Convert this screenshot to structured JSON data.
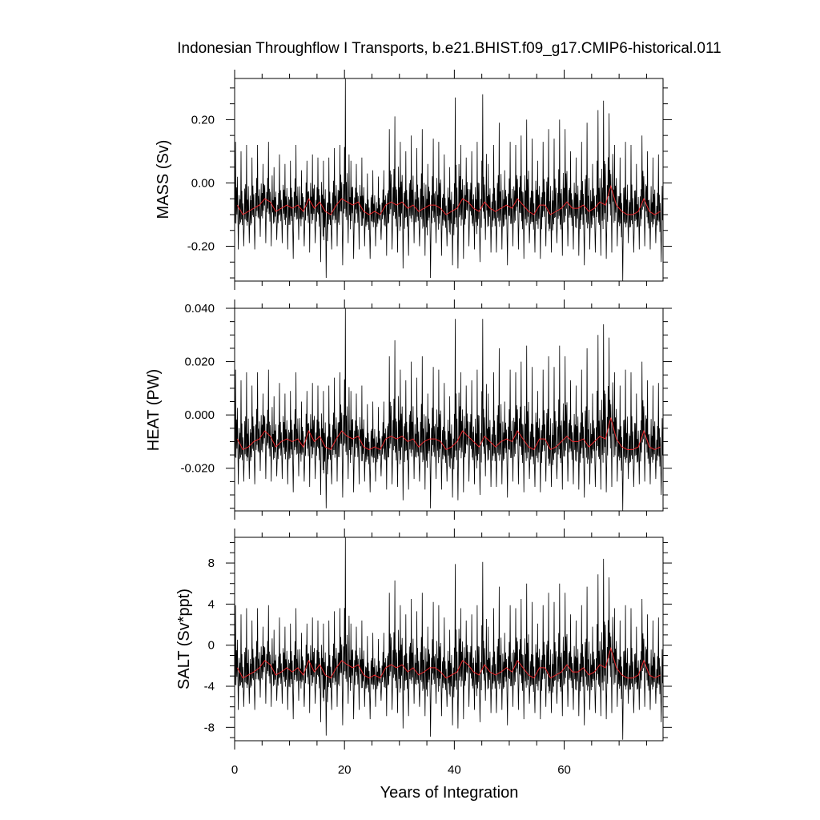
{
  "chart_data": {
    "type": "line",
    "title": "Indonesian Throughflow I Transports, b.e21.BHIST.f09_g17.CMIP6-historical.011",
    "xlabel": "Years of Integration",
    "xlim": [
      0,
      78
    ],
    "x_ticks": [
      0,
      20,
      40,
      60
    ],
    "grid": false,
    "legend": "none",
    "colors": {
      "monthly": "#000000",
      "annual": "#e8262a"
    },
    "panels": [
      {
        "ylabel": "MASS (Sv)",
        "ylim": [
          -0.31,
          0.33
        ],
        "y_ticks": [
          0.2,
          0.0,
          -0.2
        ],
        "y_tick_labels": [
          "0.20",
          "0.00",
          "-0.20"
        ],
        "annual_mean": [
          -0.07,
          -0.1,
          -0.09,
          -0.08,
          -0.07,
          -0.05,
          -0.06,
          -0.09,
          -0.08,
          -0.07,
          -0.08,
          -0.07,
          -0.09,
          -0.05,
          -0.08,
          -0.06,
          -0.09,
          -0.1,
          -0.07,
          -0.05,
          -0.06,
          -0.07,
          -0.06,
          -0.09,
          -0.1,
          -0.09,
          -0.1,
          -0.07,
          -0.06,
          -0.07,
          -0.06,
          -0.08,
          -0.07,
          -0.09,
          -0.08,
          -0.07,
          -0.07,
          -0.08,
          -0.1,
          -0.09,
          -0.08,
          -0.05,
          -0.06,
          -0.08,
          -0.09,
          -0.06,
          -0.08,
          -0.09,
          -0.08,
          -0.07,
          -0.08,
          -0.05,
          -0.07,
          -0.09,
          -0.1,
          -0.07,
          -0.07,
          -0.1,
          -0.09,
          -0.08,
          -0.06,
          -0.08,
          -0.08,
          -0.07,
          -0.09,
          -0.08,
          -0.06,
          -0.07,
          -0.01,
          -0.07,
          -0.09,
          -0.1,
          -0.1,
          -0.09,
          -0.05,
          -0.09,
          -0.1,
          -0.09
        ],
        "envelope_max": [
          0.13,
          0.1,
          0.12,
          0.08,
          0.12,
          0.06,
          0.13,
          0.05,
          0.09,
          0.06,
          0.07,
          0.12,
          0.04,
          0.07,
          0.09,
          0.08,
          0.07,
          0.08,
          0.11,
          0.12,
          0.33,
          0.07,
          0.06,
          0.08,
          0.03,
          0.04,
          0.02,
          0.04,
          0.17,
          0.21,
          0.13,
          0.1,
          0.15,
          0.11,
          0.17,
          0.06,
          0.14,
          0.13,
          0.09,
          0.05,
          0.27,
          0.12,
          0.08,
          0.1,
          0.13,
          0.28,
          0.06,
          0.12,
          0.19,
          0.04,
          0.13,
          0.12,
          0.15,
          0.2,
          0.14,
          0.07,
          0.13,
          0.17,
          0.14,
          0.2,
          0.17,
          0.1,
          0.08,
          0.13,
          0.19,
          0.06,
          0.23,
          0.26,
          0.22,
          0.12,
          0.08,
          0.13,
          0.12,
          0.06,
          0.15,
          0.1,
          0.08,
          0.09
        ],
        "envelope_min": [
          -0.21,
          -0.2,
          -0.19,
          -0.21,
          -0.17,
          -0.19,
          -0.2,
          -0.18,
          -0.19,
          -0.21,
          -0.24,
          -0.18,
          -0.2,
          -0.22,
          -0.19,
          -0.25,
          -0.3,
          -0.21,
          -0.2,
          -0.26,
          -0.19,
          -0.24,
          -0.21,
          -0.2,
          -0.24,
          -0.2,
          -0.18,
          -0.23,
          -0.21,
          -0.22,
          -0.27,
          -0.23,
          -0.19,
          -0.2,
          -0.23,
          -0.3,
          -0.19,
          -0.23,
          -0.2,
          -0.26,
          -0.27,
          -0.24,
          -0.2,
          -0.21,
          -0.25,
          -0.18,
          -0.22,
          -0.22,
          -0.21,
          -0.26,
          -0.2,
          -0.21,
          -0.24,
          -0.19,
          -0.22,
          -0.24,
          -0.2,
          -0.22,
          -0.19,
          -0.23,
          -0.2,
          -0.21,
          -0.23,
          -0.26,
          -0.21,
          -0.22,
          -0.23,
          -0.24,
          -0.22,
          -0.2,
          -0.31,
          -0.19,
          -0.22,
          -0.21,
          -0.2,
          -0.21,
          -0.19,
          -0.25
        ]
      },
      {
        "ylabel": "HEAT (PW)",
        "ylim": [
          -0.036,
          0.04
        ],
        "y_ticks": [
          0.04,
          0.02,
          0.0,
          -0.02
        ],
        "y_tick_labels": [
          "0.040",
          "0.020",
          "0.000",
          "-0.020"
        ],
        "annual_mean": [
          -0.009,
          -0.013,
          -0.012,
          -0.01,
          -0.009,
          -0.006,
          -0.008,
          -0.012,
          -0.01,
          -0.009,
          -0.01,
          -0.009,
          -0.012,
          -0.006,
          -0.01,
          -0.008,
          -0.012,
          -0.013,
          -0.009,
          -0.006,
          -0.008,
          -0.009,
          -0.008,
          -0.012,
          -0.013,
          -0.012,
          -0.013,
          -0.009,
          -0.008,
          -0.009,
          -0.008,
          -0.01,
          -0.009,
          -0.012,
          -0.01,
          -0.009,
          -0.009,
          -0.01,
          -0.013,
          -0.012,
          -0.01,
          -0.006,
          -0.008,
          -0.01,
          -0.012,
          -0.008,
          -0.01,
          -0.012,
          -0.01,
          -0.009,
          -0.01,
          -0.006,
          -0.009,
          -0.012,
          -0.013,
          -0.009,
          -0.009,
          -0.013,
          -0.012,
          -0.01,
          -0.008,
          -0.01,
          -0.01,
          -0.009,
          -0.012,
          -0.01,
          -0.008,
          -0.009,
          -0.001,
          -0.009,
          -0.012,
          -0.013,
          -0.013,
          -0.012,
          -0.006,
          -0.012,
          -0.013,
          -0.012
        ],
        "envelope_max": [
          0.017,
          0.013,
          0.016,
          0.011,
          0.016,
          0.008,
          0.017,
          0.007,
          0.012,
          0.008,
          0.009,
          0.016,
          0.005,
          0.009,
          0.012,
          0.011,
          0.009,
          0.011,
          0.014,
          0.016,
          0.04,
          0.009,
          0.008,
          0.011,
          0.004,
          0.005,
          0.003,
          0.005,
          0.022,
          0.028,
          0.017,
          0.013,
          0.02,
          0.014,
          0.022,
          0.008,
          0.018,
          0.017,
          0.012,
          0.007,
          0.036,
          0.016,
          0.011,
          0.013,
          0.017,
          0.036,
          0.008,
          0.016,
          0.025,
          0.005,
          0.017,
          0.016,
          0.02,
          0.026,
          0.018,
          0.009,
          0.017,
          0.022,
          0.018,
          0.026,
          0.022,
          0.013,
          0.011,
          0.017,
          0.025,
          0.008,
          0.03,
          0.034,
          0.029,
          0.016,
          0.011,
          0.017,
          0.016,
          0.008,
          0.02,
          0.013,
          0.011,
          0.012
        ],
        "envelope_min": [
          -0.026,
          -0.025,
          -0.024,
          -0.026,
          -0.021,
          -0.024,
          -0.025,
          -0.023,
          -0.024,
          -0.026,
          -0.029,
          -0.023,
          -0.025,
          -0.027,
          -0.024,
          -0.03,
          -0.035,
          -0.026,
          -0.025,
          -0.031,
          -0.024,
          -0.029,
          -0.026,
          -0.025,
          -0.029,
          -0.025,
          -0.023,
          -0.028,
          -0.026,
          -0.027,
          -0.032,
          -0.028,
          -0.024,
          -0.025,
          -0.028,
          -0.035,
          -0.024,
          -0.028,
          -0.025,
          -0.031,
          -0.032,
          -0.029,
          -0.025,
          -0.026,
          -0.03,
          -0.023,
          -0.027,
          -0.027,
          -0.026,
          -0.031,
          -0.025,
          -0.026,
          -0.029,
          -0.024,
          -0.027,
          -0.029,
          -0.025,
          -0.027,
          -0.024,
          -0.028,
          -0.025,
          -0.026,
          -0.028,
          -0.031,
          -0.026,
          -0.027,
          -0.028,
          -0.029,
          -0.027,
          -0.025,
          -0.036,
          -0.024,
          -0.027,
          -0.026,
          -0.025,
          -0.026,
          -0.024,
          -0.03
        ]
      },
      {
        "ylabel": "SALT (Sv*ppt)",
        "ylim": [
          -9.3,
          10.5
        ],
        "y_ticks": [
          8,
          4,
          0,
          -4,
          -8
        ],
        "y_tick_labels": [
          "8",
          "4",
          "0",
          "-4",
          "-8"
        ],
        "annual_mean": [
          -2.2,
          -3.2,
          -2.9,
          -2.6,
          -2.2,
          -1.5,
          -1.9,
          -2.9,
          -2.6,
          -2.2,
          -2.6,
          -2.2,
          -2.9,
          -1.5,
          -2.6,
          -1.9,
          -2.9,
          -3.2,
          -2.2,
          -1.5,
          -1.9,
          -2.2,
          -1.9,
          -2.9,
          -3.2,
          -2.9,
          -3.2,
          -2.2,
          -1.9,
          -2.2,
          -1.9,
          -2.6,
          -2.2,
          -2.9,
          -2.6,
          -2.2,
          -2.2,
          -2.6,
          -3.2,
          -2.9,
          -2.6,
          -1.5,
          -1.9,
          -2.6,
          -2.9,
          -1.9,
          -2.6,
          -2.9,
          -2.6,
          -2.2,
          -2.6,
          -1.5,
          -2.2,
          -2.9,
          -3.2,
          -2.2,
          -2.2,
          -3.2,
          -2.9,
          -2.6,
          -1.9,
          -2.6,
          -2.6,
          -2.2,
          -2.9,
          -2.6,
          -1.9,
          -2.2,
          -0.3,
          -2.2,
          -2.9,
          -3.2,
          -3.2,
          -2.9,
          -1.5,
          -2.9,
          -3.2,
          -2.9
        ],
        "envelope_max": [
          3.9,
          3.0,
          3.6,
          2.4,
          3.6,
          1.8,
          3.9,
          1.5,
          2.7,
          1.8,
          2.1,
          3.6,
          1.2,
          2.1,
          2.7,
          2.4,
          2.1,
          2.4,
          3.3,
          3.6,
          10.5,
          2.1,
          1.8,
          2.4,
          0.9,
          1.2,
          0.6,
          1.2,
          5.1,
          6.3,
          3.9,
          3.0,
          4.5,
          3.3,
          5.1,
          1.8,
          4.2,
          3.9,
          2.7,
          1.5,
          7.9,
          3.6,
          2.4,
          3.0,
          3.9,
          8.1,
          1.8,
          3.6,
          5.7,
          1.2,
          3.9,
          3.6,
          4.5,
          6.0,
          4.2,
          2.1,
          3.9,
          5.1,
          4.2,
          6.0,
          5.1,
          3.0,
          2.4,
          3.9,
          5.7,
          1.8,
          6.9,
          8.4,
          6.6,
          3.6,
          2.4,
          3.9,
          3.6,
          1.8,
          4.5,
          3.0,
          2.4,
          2.7
        ],
        "envelope_min": [
          -6.3,
          -6.0,
          -5.7,
          -6.3,
          -5.1,
          -5.7,
          -6.0,
          -5.4,
          -5.7,
          -6.3,
          -7.2,
          -5.4,
          -6.0,
          -6.6,
          -5.7,
          -7.5,
          -8.8,
          -6.3,
          -6.0,
          -7.8,
          -5.7,
          -7.2,
          -6.3,
          -6.0,
          -7.2,
          -6.0,
          -5.4,
          -6.9,
          -6.3,
          -6.6,
          -8.1,
          -6.9,
          -5.7,
          -6.0,
          -6.9,
          -8.9,
          -5.7,
          -6.9,
          -6.0,
          -7.8,
          -8.1,
          -7.2,
          -6.0,
          -6.3,
          -7.5,
          -5.4,
          -6.6,
          -6.6,
          -6.3,
          -7.8,
          -6.0,
          -6.3,
          -7.2,
          -5.7,
          -6.6,
          -7.2,
          -6.0,
          -6.6,
          -5.7,
          -6.9,
          -6.0,
          -6.3,
          -6.9,
          -7.8,
          -6.3,
          -6.6,
          -6.9,
          -7.2,
          -6.6,
          -6.0,
          -9.2,
          -5.7,
          -6.6,
          -6.3,
          -6.0,
          -6.3,
          -5.7,
          -7.5
        ]
      }
    ]
  }
}
